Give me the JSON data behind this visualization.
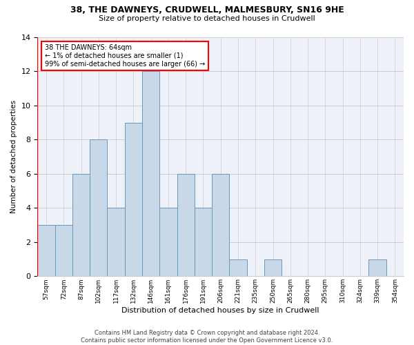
{
  "title1": "38, THE DAWNEYS, CRUDWELL, MALMESBURY, SN16 9HE",
  "title2": "Size of property relative to detached houses in Crudwell",
  "xlabel": "Distribution of detached houses by size in Crudwell",
  "ylabel": "Number of detached properties",
  "bar_labels": [
    "57sqm",
    "72sqm",
    "87sqm",
    "102sqm",
    "117sqm",
    "132sqm",
    "146sqm",
    "161sqm",
    "176sqm",
    "191sqm",
    "206sqm",
    "221sqm",
    "235sqm",
    "250sqm",
    "265sqm",
    "280sqm",
    "295sqm",
    "310sqm",
    "324sqm",
    "339sqm",
    "354sqm"
  ],
  "bar_values": [
    3,
    3,
    6,
    8,
    4,
    9,
    12,
    4,
    6,
    4,
    6,
    1,
    0,
    1,
    0,
    0,
    0,
    0,
    0,
    1,
    0
  ],
  "bar_color": "#c8d8e8",
  "bar_edge_color": "#6699bb",
  "annotation_text": "38 THE DAWNEYS: 64sqm\n← 1% of detached houses are smaller (1)\n99% of semi-detached houses are larger (66) →",
  "annotation_box_color": "white",
  "annotation_box_edge_color": "red",
  "ylim": [
    0,
    14
  ],
  "yticks": [
    0,
    2,
    4,
    6,
    8,
    10,
    12,
    14
  ],
  "footer1": "Contains HM Land Registry data © Crown copyright and database right 2024.",
  "footer2": "Contains public sector information licensed under the Open Government Licence v3.0.",
  "background_color": "#ffffff",
  "plot_bg_color": "#eef2f8",
  "grid_color": "#cccccc"
}
